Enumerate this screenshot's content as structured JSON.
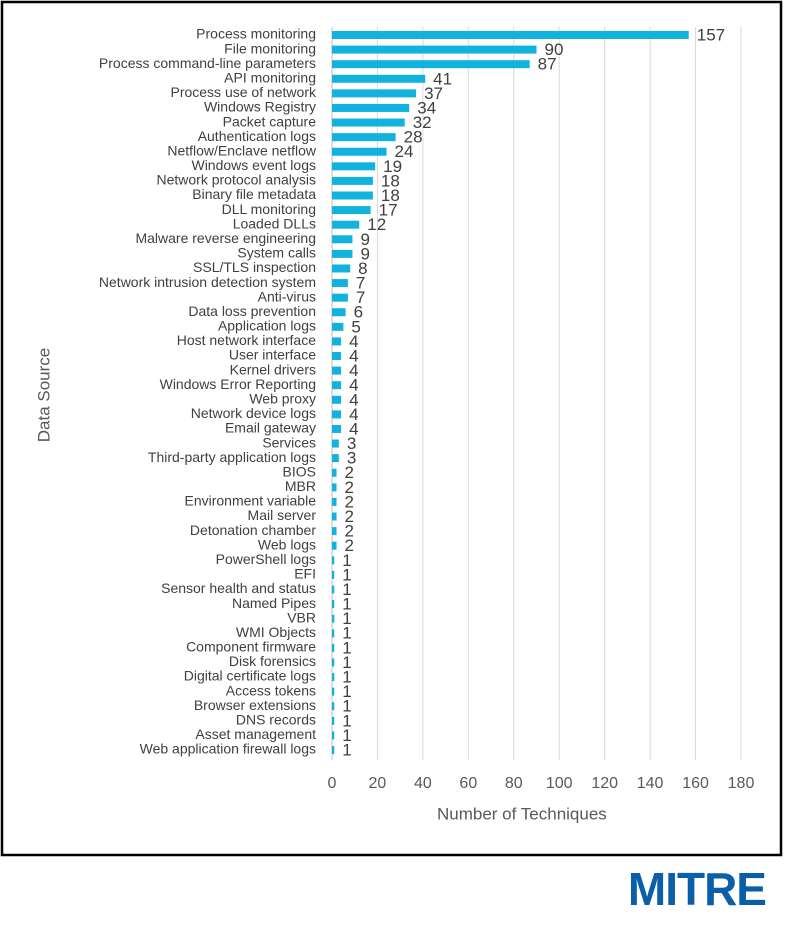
{
  "chart_data": {
    "type": "bar",
    "orientation": "horizontal",
    "xlabel": "Number of Techniques",
    "ylabel": "Data Source",
    "categories": [
      "Process monitoring",
      "File monitoring",
      "Process command-line parameters",
      "API monitoring",
      "Process use of network",
      "Windows Registry",
      "Packet capture",
      "Authentication logs",
      "Netflow/Enclave netflow",
      "Windows event logs",
      "Network protocol analysis",
      "Binary file metadata",
      "DLL monitoring",
      "Loaded DLLs",
      "Malware reverse engineering",
      "System calls",
      "SSL/TLS inspection",
      "Network intrusion detection system",
      "Anti-virus",
      "Data loss prevention",
      "Application logs",
      "Host network interface",
      "User interface",
      "Kernel drivers",
      "Windows Error Reporting",
      "Web proxy",
      "Network device logs",
      "Email gateway",
      "Services",
      "Third-party application logs",
      "BIOS",
      "MBR",
      "Environment variable",
      "Mail server",
      "Detonation chamber",
      "Web logs",
      "PowerShell logs",
      "EFI",
      "Sensor health and status",
      "Named Pipes",
      "VBR",
      "WMI Objects",
      "Component firmware",
      "Disk forensics",
      "Digital certificate logs",
      "Access tokens",
      "Browser extensions",
      "DNS records",
      "Asset management",
      "Web application firewall logs"
    ],
    "values": [
      157,
      90,
      87,
      41,
      37,
      34,
      32,
      28,
      24,
      19,
      18,
      18,
      17,
      12,
      9,
      9,
      8,
      7,
      7,
      6,
      5,
      4,
      4,
      4,
      4,
      4,
      4,
      4,
      3,
      3,
      2,
      2,
      2,
      2,
      2,
      2,
      1,
      1,
      1,
      1,
      1,
      1,
      1,
      1,
      1,
      1,
      1,
      1,
      1,
      1
    ],
    "color": "#12b2de",
    "xlim": [
      0,
      180
    ],
    "xticks": [
      0,
      20,
      40,
      60,
      80,
      100,
      120,
      140,
      160,
      180
    ],
    "grid": true
  },
  "logo": "MITRE"
}
